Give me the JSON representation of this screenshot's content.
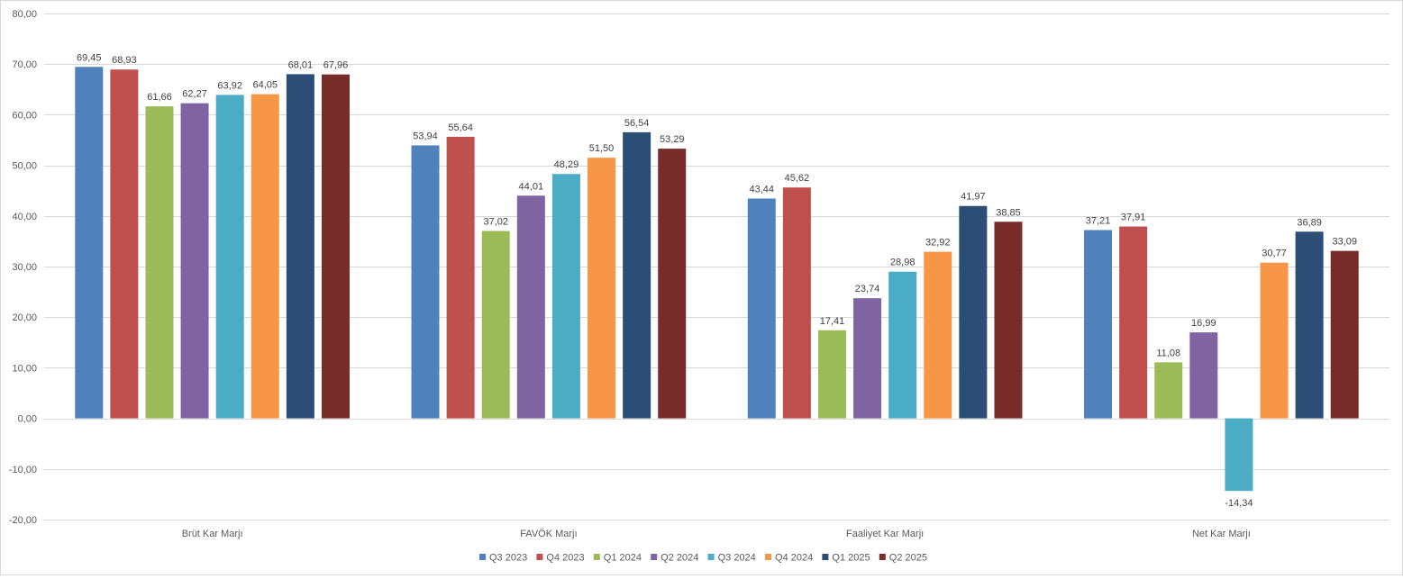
{
  "chart_data": {
    "type": "bar",
    "categories": [
      "Brüt Kar Marjı",
      "FAVÖK Marjı",
      "Faaliyet Kar Marjı",
      "Net Kar Marjı"
    ],
    "series": [
      {
        "name": "Q3 2023",
        "color": "#4f81bd",
        "values": [
          69.45,
          53.94,
          43.44,
          37.21
        ],
        "labels": [
          "69,45",
          "53,94",
          "43,44",
          "37,21"
        ]
      },
      {
        "name": "Q4 2023",
        "color": "#c0504d",
        "values": [
          68.93,
          55.64,
          45.62,
          37.91
        ],
        "labels": [
          "68,93",
          "55,64",
          "45,62",
          "37,91"
        ]
      },
      {
        "name": "Q1 2024",
        "color": "#9bbb59",
        "values": [
          61.66,
          37.02,
          17.41,
          11.08
        ],
        "labels": [
          "61,66",
          "37,02",
          "17,41",
          "11,08"
        ]
      },
      {
        "name": "Q2 2024",
        "color": "#8064a2",
        "values": [
          62.27,
          44.01,
          23.74,
          16.99
        ],
        "labels": [
          "62,27",
          "44,01",
          "23,74",
          "16,99"
        ]
      },
      {
        "name": "Q3 2024",
        "color": "#4bacc6",
        "values": [
          63.92,
          48.29,
          28.98,
          -14.34
        ],
        "labels": [
          "63,92",
          "48,29",
          "28,98",
          "-14,34"
        ]
      },
      {
        "name": "Q4 2024",
        "color": "#f79646",
        "values": [
          64.05,
          51.5,
          32.92,
          30.77
        ],
        "labels": [
          "64,05",
          "51,50",
          "32,92",
          "30,77"
        ]
      },
      {
        "name": "Q1 2025",
        "color": "#2c4d75",
        "values": [
          68.01,
          56.54,
          41.97,
          36.89
        ],
        "labels": [
          "68,01",
          "56,54",
          "41,97",
          "36,89"
        ]
      },
      {
        "name": "Q2 2025",
        "color": "#772c2a",
        "values": [
          67.96,
          53.29,
          38.85,
          33.09
        ],
        "labels": [
          "67,96",
          "53,29",
          "38,85",
          "33,09"
        ]
      }
    ],
    "ylim": [
      -20,
      80
    ],
    "yticks": [
      -20,
      -10,
      0,
      10,
      20,
      30,
      40,
      50,
      60,
      70,
      80
    ],
    "ytick_labels": [
      "-20,00",
      "-10,00",
      "0,00",
      "10,00",
      "20,00",
      "30,00",
      "40,00",
      "50,00",
      "60,00",
      "70,00",
      "80,00"
    ],
    "grid": true,
    "legend_position": "bottom",
    "title": "",
    "xlabel": "",
    "ylabel": ""
  }
}
